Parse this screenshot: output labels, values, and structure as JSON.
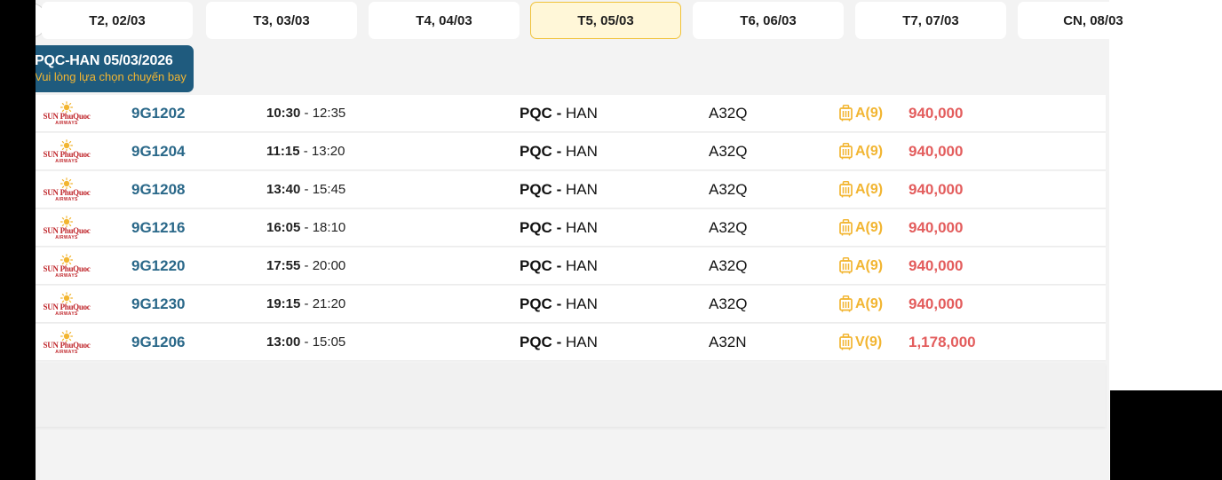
{
  "date_tabs": [
    {
      "label": "T2, 02/03",
      "active": false
    },
    {
      "label": "T3, 03/03",
      "active": false
    },
    {
      "label": "T4, 04/03",
      "active": false
    },
    {
      "label": "T5, 05/03",
      "active": true
    },
    {
      "label": "T6, 06/03",
      "active": false
    },
    {
      "label": "T7, 07/03",
      "active": false
    },
    {
      "label": "CN, 08/03",
      "active": false
    }
  ],
  "route_header": {
    "title": "PQC-HAN 05/03/2026",
    "subtitle": "Vui lòng lựa chọn chuyến bay"
  },
  "airline_logo": {
    "name": "SUN PhuQuoc",
    "sub": "AIRWAYS",
    "icon": "sun-logo-icon"
  },
  "flights": [
    {
      "flight_no": "9G1202",
      "dep": "10:30",
      "arr": "12:35",
      "from": "PQC",
      "to": "HAN",
      "aircraft": "A32Q",
      "fare_class": "A(9)",
      "price": "940,000"
    },
    {
      "flight_no": "9G1204",
      "dep": "11:15",
      "arr": "13:20",
      "from": "PQC",
      "to": "HAN",
      "aircraft": "A32Q",
      "fare_class": "A(9)",
      "price": "940,000"
    },
    {
      "flight_no": "9G1208",
      "dep": "13:40",
      "arr": "15:45",
      "from": "PQC",
      "to": "HAN",
      "aircraft": "A32Q",
      "fare_class": "A(9)",
      "price": "940,000"
    },
    {
      "flight_no": "9G1216",
      "dep": "16:05",
      "arr": "18:10",
      "from": "PQC",
      "to": "HAN",
      "aircraft": "A32Q",
      "fare_class": "A(9)",
      "price": "940,000"
    },
    {
      "flight_no": "9G1220",
      "dep": "17:55",
      "arr": "20:00",
      "from": "PQC",
      "to": "HAN",
      "aircraft": "A32Q",
      "fare_class": "A(9)",
      "price": "940,000"
    },
    {
      "flight_no": "9G1230",
      "dep": "19:15",
      "arr": "21:20",
      "from": "PQC",
      "to": "HAN",
      "aircraft": "A32Q",
      "fare_class": "A(9)",
      "price": "940,000"
    },
    {
      "flight_no": "9G1206",
      "dep": "13:00",
      "arr": "15:05",
      "from": "PQC",
      "to": "HAN",
      "aircraft": "A32N",
      "fare_class": "V(9)",
      "price": "1,178,000"
    }
  ],
  "colors": {
    "route_header_bg": "#1f5b7e",
    "accent_yellow": "#f2b531",
    "price_red": "#e35d5d",
    "flight_no_blue": "#2a6889",
    "airline_red": "#c0282d"
  }
}
